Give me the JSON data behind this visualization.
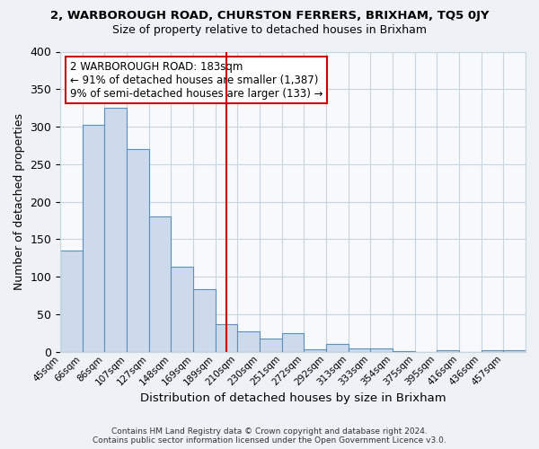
{
  "title": "2, WARBOROUGH ROAD, CHURSTON FERRERS, BRIXHAM, TQ5 0JY",
  "subtitle": "Size of property relative to detached houses in Brixham",
  "xlabel": "Distribution of detached houses by size in Brixham",
  "ylabel": "Number of detached properties",
  "bar_labels": [
    "45sqm",
    "66sqm",
    "86sqm",
    "107sqm",
    "127sqm",
    "148sqm",
    "169sqm",
    "189sqm",
    "210sqm",
    "230sqm",
    "251sqm",
    "272sqm",
    "292sqm",
    "313sqm",
    "333sqm",
    "354sqm",
    "375sqm",
    "395sqm",
    "416sqm",
    "436sqm",
    "457sqm"
  ],
  "bar_values": [
    135,
    303,
    325,
    270,
    181,
    113,
    83,
    37,
    27,
    18,
    25,
    3,
    11,
    4,
    4,
    1,
    0,
    2,
    0,
    2,
    2
  ],
  "bar_color": "#cddaeb",
  "bar_edge_color": "#5b8fbe",
  "vline_color": "#cc0000",
  "annotation_text": "2 WARBOROUGH ROAD: 183sqm\n← 91% of detached houses are smaller (1,387)\n9% of semi-detached houses are larger (133) →",
  "annotation_box_color": "#ffffff",
  "annotation_box_edge": "#cc0000",
  "ylim": [
    0,
    400
  ],
  "yticks": [
    0,
    50,
    100,
    150,
    200,
    250,
    300,
    350,
    400
  ],
  "footer": "Contains HM Land Registry data © Crown copyright and database right 2024.\nContains public sector information licensed under the Open Government Licence v3.0.",
  "bg_color": "#eef2f7",
  "plot_bg_color": "#f7f9fc",
  "grid_color": "#c8d4e0"
}
